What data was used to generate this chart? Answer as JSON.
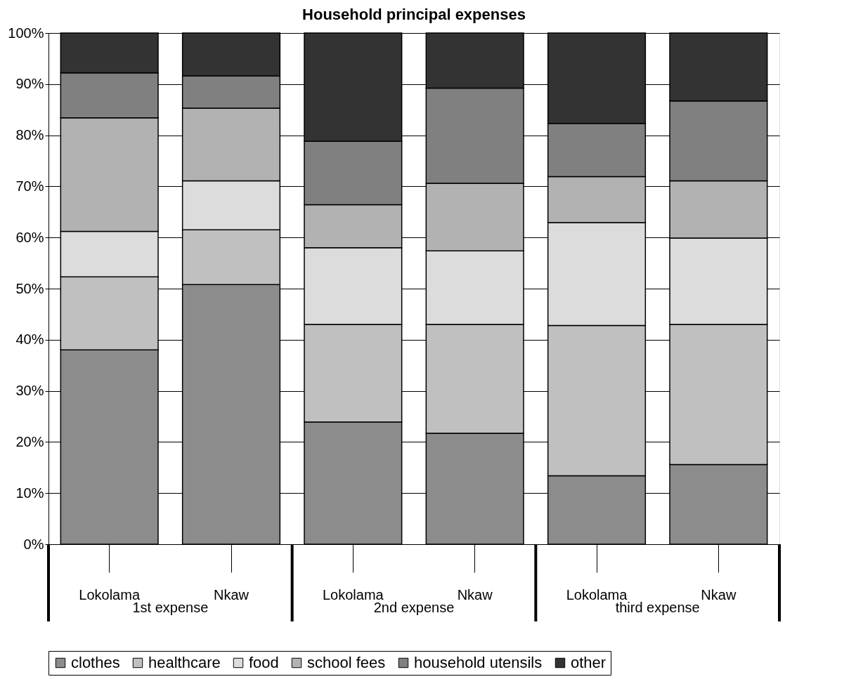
{
  "chart_data": {
    "type": "bar",
    "stacked": true,
    "title": "Household principal expenses",
    "categories": [
      "Lokolama",
      "Nkaw",
      "Lokolama",
      "Nkaw",
      "Lokolama",
      "Nkaw"
    ],
    "annotations": [
      "1st expense",
      "2nd expense",
      "third expense"
    ],
    "series": [
      {
        "name": "clothes",
        "color": "#8c8c8c",
        "values": [
          38.0,
          50.8,
          23.9,
          21.7,
          13.4,
          15.6
        ]
      },
      {
        "name": "healthcare",
        "color": "#c0c0c0",
        "values": [
          14.3,
          10.7,
          19.1,
          21.3,
          29.4,
          27.4
        ]
      },
      {
        "name": "food",
        "color": "#dcdcdc",
        "values": [
          8.9,
          9.6,
          15.0,
          14.4,
          20.1,
          16.9
        ]
      },
      {
        "name": "school fees",
        "color": "#b2b2b2",
        "values": [
          22.2,
          14.2,
          8.4,
          13.2,
          9.0,
          11.2
        ]
      },
      {
        "name": "household utensils",
        "color": "#808080",
        "values": [
          8.8,
          6.3,
          12.4,
          18.6,
          10.4,
          15.6
        ]
      },
      {
        "name": "other",
        "color": "#333333",
        "values": [
          7.8,
          8.4,
          21.2,
          10.8,
          17.7,
          13.3
        ]
      }
    ],
    "ylim": [
      0,
      100
    ],
    "yticks": [
      {
        "value": 0,
        "label": "0%"
      },
      {
        "value": 10,
        "label": "10%"
      },
      {
        "value": 20,
        "label": "20%"
      },
      {
        "value": 30,
        "label": "30%"
      },
      {
        "value": 40,
        "label": "40%"
      },
      {
        "value": 50,
        "label": "50%"
      },
      {
        "value": 60,
        "label": "60%"
      },
      {
        "value": 70,
        "label": "70%"
      },
      {
        "value": 80,
        "label": "80%"
      },
      {
        "value": 90,
        "label": "90%"
      },
      {
        "value": 100,
        "label": "100%"
      }
    ],
    "grid": "y",
    "legend": "bottom"
  }
}
